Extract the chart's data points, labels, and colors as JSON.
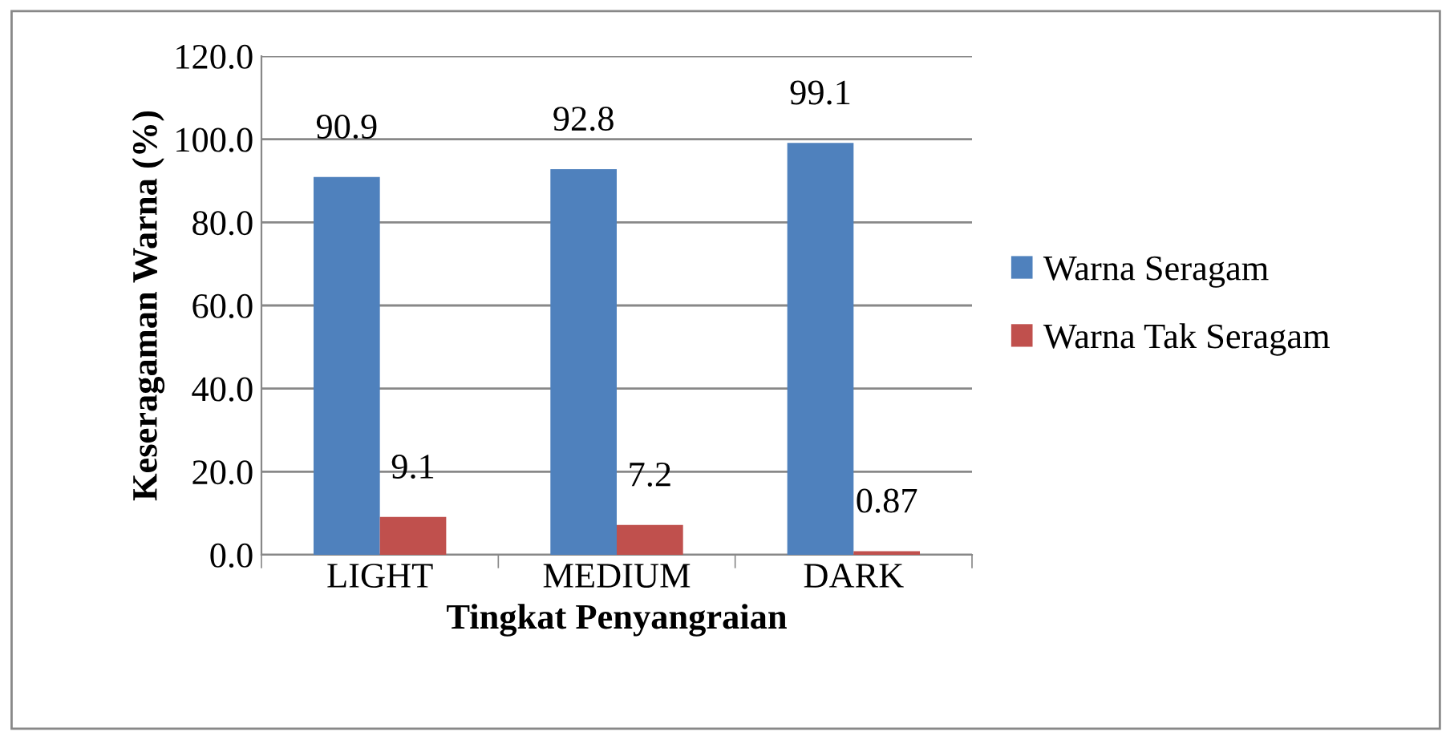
{
  "chart_data": {
    "type": "bar",
    "xlabel": "Tingkat Penyangraian",
    "ylabel": "Keseragaman Warna (%)",
    "categories": [
      "LIGHT",
      "MEDIUM",
      "DARK"
    ],
    "series": [
      {
        "name": "Warna Seragam",
        "color": "#4f81bd",
        "values": [
          90.9,
          92.8,
          99.1
        ]
      },
      {
        "name": "Warna Tak Seragam",
        "color": "#c0504d",
        "values": [
          9.1,
          7.2,
          0.87
        ]
      }
    ],
    "ylim": [
      0,
      120
    ],
    "yticks": [
      {
        "value": 0,
        "label": "0.0"
      },
      {
        "value": 20,
        "label": "20.0"
      },
      {
        "value": 40,
        "label": "40.0"
      },
      {
        "value": 60,
        "label": "60.0"
      },
      {
        "value": 80,
        "label": "80.0"
      },
      {
        "value": 100,
        "label": "100.0"
      },
      {
        "value": 120,
        "label": "120.0"
      }
    ],
    "grid": "y",
    "legend": "right",
    "data_labels": true
  }
}
